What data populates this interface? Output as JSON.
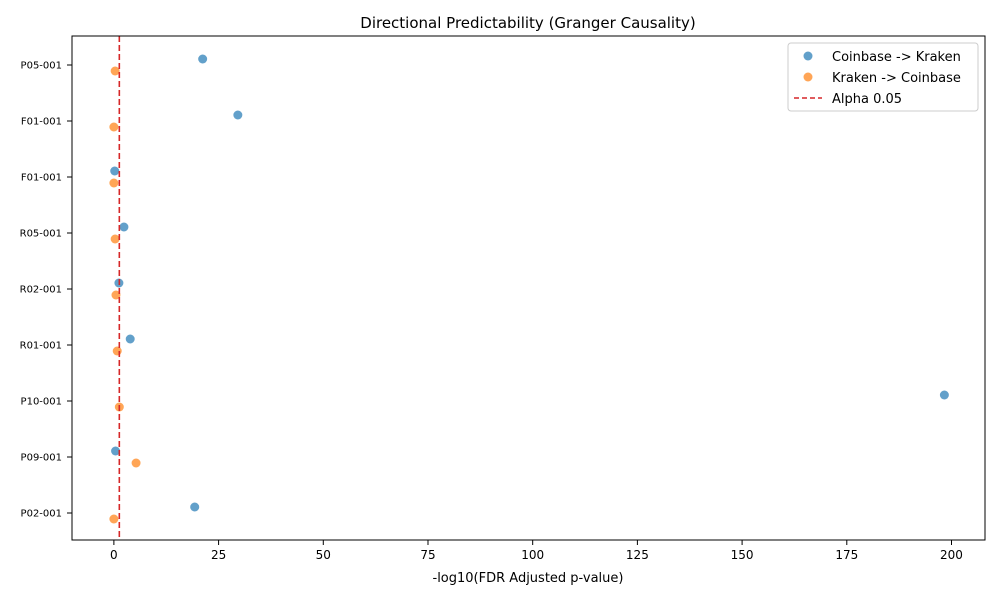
{
  "chart_data": {
    "type": "scatter",
    "title": "Directional Predictability (Granger Causality)",
    "xlabel": "-log10(FDR Adjusted p-value)",
    "ylabel": "",
    "xlim": [
      -10,
      208
    ],
    "xticks": [
      0,
      25,
      50,
      75,
      100,
      125,
      150,
      175,
      200
    ],
    "categories": [
      "P02-001",
      "P09-001",
      "P10-001",
      "R01-001",
      "R02-001",
      "R05-001",
      "F01-001",
      "F01-001",
      "P05-001"
    ],
    "series": [
      {
        "name": "Coinbase -> Kraken",
        "color": "#1f77b4",
        "values": [
          19.3,
          0.4,
          198.3,
          3.9,
          1.2,
          2.4,
          0.2,
          29.6,
          21.2
        ]
      },
      {
        "name": "Kraken -> Coinbase",
        "color": "#ff7f0e",
        "values": [
          0.0,
          5.3,
          1.3,
          0.8,
          0.5,
          0.3,
          0.0,
          0.0,
          0.3
        ]
      }
    ],
    "reference_line": {
      "name": "Alpha 0.05",
      "x": 1.3,
      "color": "#d62728",
      "style": "dashed"
    },
    "legend": "top-right",
    "grid": false
  }
}
